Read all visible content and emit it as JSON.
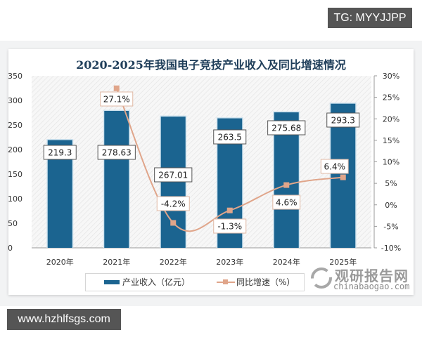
{
  "badges": {
    "top_right": "TG: MYYJJPP",
    "bottom_left": "www.hzhlfsgs.com"
  },
  "watermark": {
    "cn": "观研报告网",
    "en": "chinabaogao.com"
  },
  "chart_data": {
    "type": "bar",
    "title": "2020-2025年我国电子竞技产业收入及同比增速情况",
    "categories": [
      "2020年",
      "2021年",
      "2022年",
      "2023年",
      "2024年",
      "2025年"
    ],
    "series": [
      {
        "name": "产业收入（亿元）",
        "type": "bar",
        "axis": "left",
        "color": "#1b6490",
        "values": [
          219.3,
          278.63,
          267.01,
          263.5,
          275.68,
          293.3
        ],
        "labels": [
          "219.3",
          "278.63",
          "267.01",
          "263.5",
          "275.68",
          "293.3"
        ]
      },
      {
        "name": "同比增速（%）",
        "type": "line",
        "axis": "right",
        "color": "#e0a58a",
        "values": [
          null,
          27.1,
          -4.2,
          -1.3,
          4.6,
          6.4
        ],
        "labels": [
          "",
          "27.1%",
          "-4.2%",
          "-1.3%",
          "4.6%",
          "6.4%"
        ]
      }
    ],
    "y_left": {
      "ticks": [
        "0",
        "50",
        "100",
        "150",
        "200",
        "250",
        "300",
        "350"
      ],
      "ylim": [
        0,
        350
      ]
    },
    "y_right": {
      "ticks": [
        "-10%",
        "-5%",
        "0%",
        "5%",
        "10%",
        "15%",
        "20%",
        "25%",
        "30%"
      ],
      "ylim": [
        -10,
        30
      ]
    },
    "legend": {
      "position": "bottom",
      "items": [
        "产业收入（亿元）",
        "同比增速（%）"
      ]
    },
    "grid": false
  }
}
